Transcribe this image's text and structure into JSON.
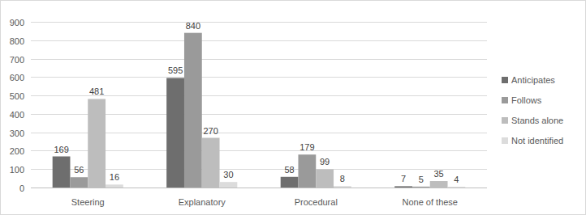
{
  "chart_data": {
    "type": "bar",
    "categories": [
      "Steering",
      "Explanatory",
      "Procedural",
      "None of these"
    ],
    "series": [
      {
        "name": "Anticipates",
        "color": "#6e6e6e",
        "values": [
          169,
          595,
          58,
          7
        ]
      },
      {
        "name": "Follows",
        "color": "#9a9a9a",
        "values": [
          56,
          840,
          179,
          5
        ]
      },
      {
        "name": "Stands alone",
        "color": "#bdbdbd",
        "values": [
          481,
          270,
          99,
          35
        ]
      },
      {
        "name": "Not identified",
        "color": "#dcdcdc",
        "values": [
          16,
          30,
          8,
          4
        ]
      }
    ],
    "ylim": [
      0,
      900
    ],
    "yticks": [
      0,
      100,
      200,
      300,
      400,
      500,
      600,
      700,
      800,
      900
    ],
    "grid": true,
    "legend": "right",
    "data_labels": true
  }
}
